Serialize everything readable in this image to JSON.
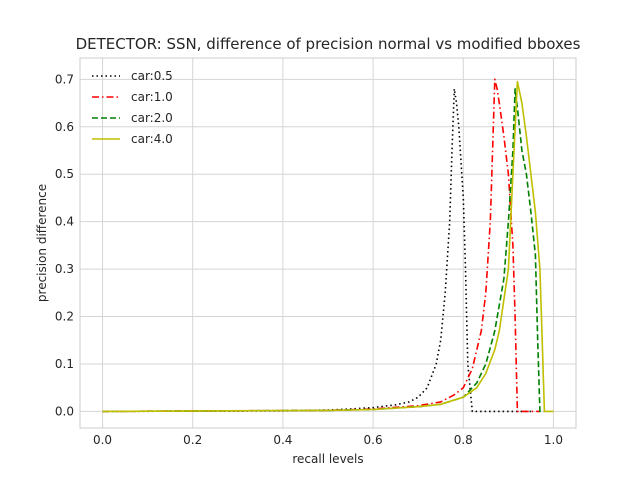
{
  "chart_data": {
    "type": "line",
    "title": "DETECTOR: SSN, difference of precision normal vs modified bboxes",
    "xlabel": "recall levels",
    "ylabel": "precision difference",
    "xlim": [
      -0.05,
      1.05
    ],
    "ylim": [
      -0.035,
      0.745
    ],
    "xticks": [
      0.0,
      0.2,
      0.4,
      0.6,
      0.8,
      1.0
    ],
    "xtick_labels": [
      "0.0",
      "0.2",
      "0.4",
      "0.6",
      "0.8",
      "1.0"
    ],
    "yticks": [
      0.0,
      0.1,
      0.2,
      0.3,
      0.4,
      0.5,
      0.6,
      0.7
    ],
    "ytick_labels": [
      "0.0",
      "0.1",
      "0.2",
      "0.3",
      "0.4",
      "0.5",
      "0.6",
      "0.7"
    ],
    "grid": true,
    "legend": "top-left",
    "series": [
      {
        "name": "car:0.5",
        "color": "#000000",
        "style": "dotted",
        "x": [
          0.0,
          0.4,
          0.5,
          0.55,
          0.6,
          0.65,
          0.68,
          0.7,
          0.72,
          0.74,
          0.75,
          0.76,
          0.77,
          0.775,
          0.78,
          0.785,
          0.79,
          0.8,
          0.805,
          0.81,
          0.82,
          0.86,
          0.95
        ],
        "y": [
          0.0,
          0.001,
          0.003,
          0.005,
          0.008,
          0.014,
          0.02,
          0.03,
          0.05,
          0.1,
          0.15,
          0.25,
          0.4,
          0.55,
          0.68,
          0.65,
          0.6,
          0.45,
          0.3,
          0.1,
          0.0,
          0.0,
          0.0
        ]
      },
      {
        "name": "car:1.0",
        "color": "#ff0000",
        "style": "dashdot",
        "x": [
          0.0,
          0.5,
          0.6,
          0.7,
          0.75,
          0.78,
          0.8,
          0.82,
          0.84,
          0.85,
          0.86,
          0.865,
          0.87,
          0.875,
          0.88,
          0.89,
          0.9,
          0.91,
          0.915,
          0.92,
          0.93,
          0.97
        ],
        "y": [
          0.0,
          0.002,
          0.005,
          0.012,
          0.02,
          0.035,
          0.05,
          0.09,
          0.17,
          0.25,
          0.4,
          0.55,
          0.7,
          0.68,
          0.65,
          0.58,
          0.5,
          0.35,
          0.2,
          0.0,
          0.0,
          0.0
        ]
      },
      {
        "name": "car:2.0",
        "color": "#008000",
        "style": "dashed",
        "x": [
          0.0,
          0.5,
          0.6,
          0.7,
          0.75,
          0.8,
          0.83,
          0.85,
          0.87,
          0.89,
          0.9,
          0.91,
          0.915,
          0.92,
          0.93,
          0.94,
          0.95,
          0.96,
          0.965,
          0.97,
          0.98
        ],
        "y": [
          0.0,
          0.002,
          0.004,
          0.01,
          0.015,
          0.03,
          0.06,
          0.1,
          0.17,
          0.28,
          0.4,
          0.55,
          0.68,
          0.64,
          0.55,
          0.5,
          0.42,
          0.33,
          0.15,
          0.0,
          0.0
        ]
      },
      {
        "name": "car:4.0",
        "color": "#bfbf00",
        "style": "solid",
        "x": [
          0.0,
          0.5,
          0.6,
          0.7,
          0.75,
          0.8,
          0.83,
          0.85,
          0.87,
          0.88,
          0.9,
          0.91,
          0.92,
          0.93,
          0.94,
          0.95,
          0.96,
          0.97,
          0.975,
          0.98,
          0.99,
          1.0
        ],
        "y": [
          0.0,
          0.002,
          0.004,
          0.01,
          0.015,
          0.03,
          0.05,
          0.08,
          0.13,
          0.17,
          0.3,
          0.5,
          0.695,
          0.65,
          0.58,
          0.5,
          0.42,
          0.3,
          0.15,
          0.0,
          0.0,
          0.0
        ]
      }
    ]
  }
}
